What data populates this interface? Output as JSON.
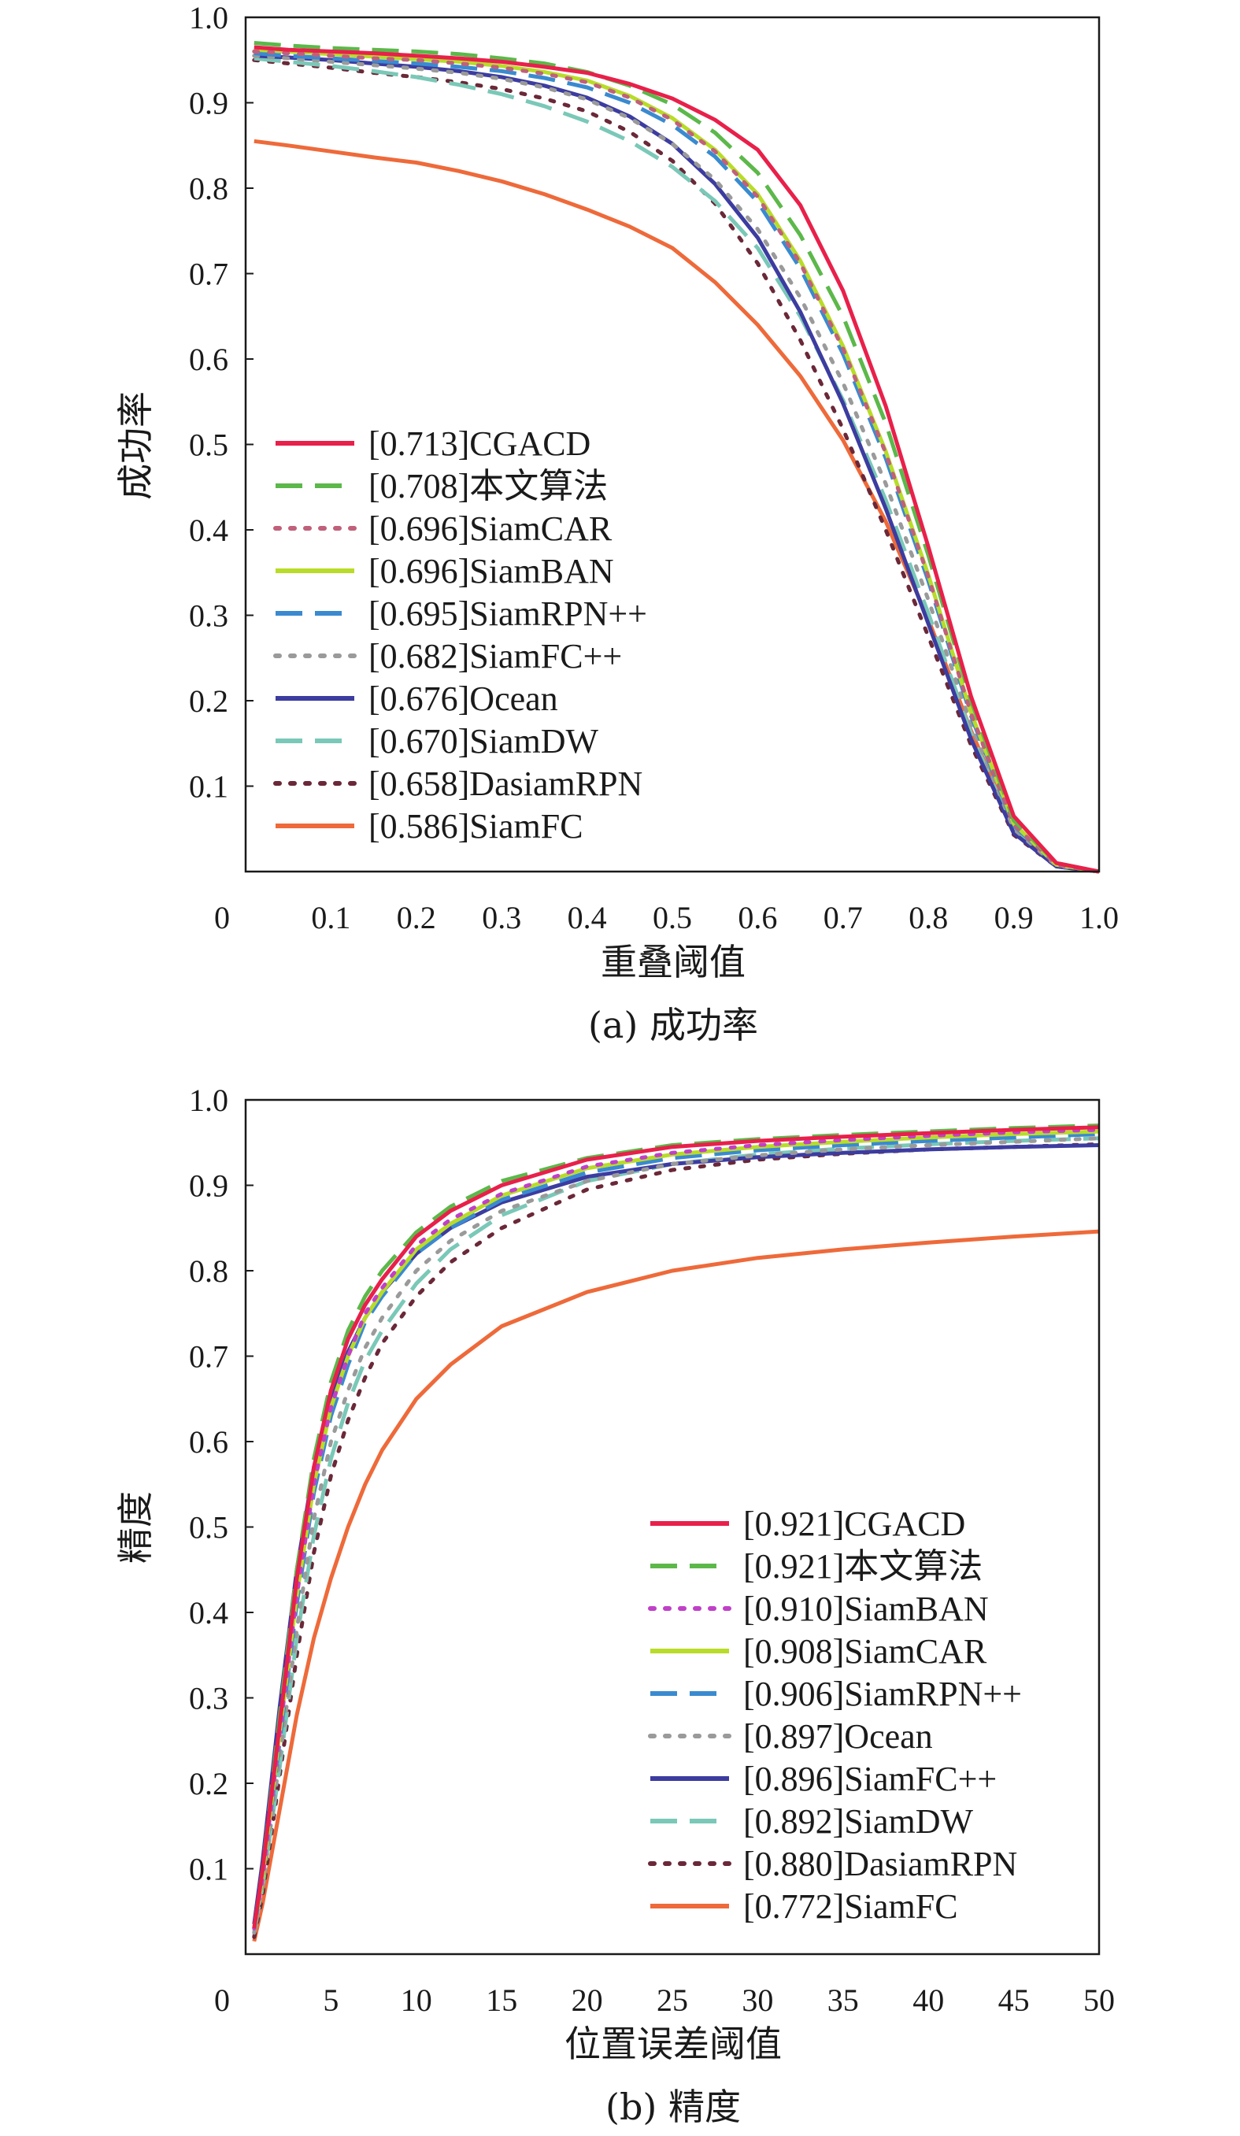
{
  "chart_data": [
    {
      "type": "line",
      "title": "",
      "caption": "(a) 成功率",
      "xlabel": "重叠阈值",
      "ylabel": "成功率",
      "xlim": [
        0,
        1.0
      ],
      "ylim": [
        0,
        1.0
      ],
      "x_ticks": [
        "0",
        "0.1",
        "0.2",
        "0.3",
        "0.4",
        "0.5",
        "0.6",
        "0.7",
        "0.8",
        "0.9",
        "1.0"
      ],
      "x_tick_values": [
        0,
        0.1,
        0.2,
        0.3,
        0.4,
        0.5,
        0.6,
        0.7,
        0.8,
        0.9,
        1.0
      ],
      "y_ticks": [
        "0.1",
        "0.2",
        "0.3",
        "0.4",
        "0.5",
        "0.6",
        "0.7",
        "0.8",
        "0.9",
        "1.0"
      ],
      "y_tick_values": [
        0.1,
        0.2,
        0.3,
        0.4,
        0.5,
        0.6,
        0.7,
        0.8,
        0.9,
        1.0
      ],
      "legend_position": "lower-left",
      "x": [
        0.01,
        0.05,
        0.1,
        0.15,
        0.2,
        0.25,
        0.3,
        0.35,
        0.4,
        0.45,
        0.5,
        0.55,
        0.6,
        0.65,
        0.7,
        0.75,
        0.8,
        0.85,
        0.9,
        0.95,
        1.0
      ],
      "series": [
        {
          "name": "CGACD",
          "label": "[0.713]CGACD",
          "color": "#e8204a",
          "style": "solid",
          "values": [
            0.965,
            0.962,
            0.96,
            0.958,
            0.955,
            0.952,
            0.948,
            0.942,
            0.935,
            0.922,
            0.905,
            0.88,
            0.845,
            0.78,
            0.68,
            0.545,
            0.38,
            0.205,
            0.065,
            0.01,
            0.0
          ]
        },
        {
          "name": "本文算法",
          "label": "[0.708]本文算法",
          "color": "#5cb84a",
          "style": "dashed",
          "values": [
            0.97,
            0.967,
            0.964,
            0.962,
            0.96,
            0.957,
            0.952,
            0.946,
            0.936,
            0.92,
            0.898,
            0.865,
            0.818,
            0.745,
            0.65,
            0.525,
            0.37,
            0.2,
            0.06,
            0.01,
            0.0
          ]
        },
        {
          "name": "SiamCAR",
          "label": "[0.696]SiamCAR",
          "color": "#c0607a",
          "style": "dotted",
          "values": [
            0.96,
            0.958,
            0.955,
            0.952,
            0.95,
            0.946,
            0.941,
            0.934,
            0.924,
            0.906,
            0.88,
            0.843,
            0.79,
            0.712,
            0.612,
            0.49,
            0.345,
            0.185,
            0.055,
            0.008,
            0.0
          ]
        },
        {
          "name": "SiamBAN",
          "label": "[0.696]SiamBAN",
          "color": "#b8dc28",
          "style": "solid",
          "values": [
            0.962,
            0.96,
            0.957,
            0.954,
            0.951,
            0.948,
            0.943,
            0.936,
            0.926,
            0.908,
            0.882,
            0.845,
            0.793,
            0.715,
            0.615,
            0.492,
            0.347,
            0.186,
            0.056,
            0.008,
            0.0
          ]
        },
        {
          "name": "SiamRPN++",
          "label": "[0.695]SiamRPN++",
          "color": "#3a8ad0",
          "style": "dashed",
          "values": [
            0.958,
            0.955,
            0.952,
            0.949,
            0.946,
            0.942,
            0.937,
            0.929,
            0.918,
            0.9,
            0.874,
            0.837,
            0.784,
            0.706,
            0.606,
            0.484,
            0.34,
            0.182,
            0.054,
            0.008,
            0.0
          ]
        },
        {
          "name": "SiamFC++",
          "label": "[0.682]SiamFC++",
          "color": "#9a9a9a",
          "style": "dotted",
          "values": [
            0.955,
            0.952,
            0.948,
            0.944,
            0.94,
            0.935,
            0.928,
            0.918,
            0.904,
            0.882,
            0.852,
            0.81,
            0.752,
            0.672,
            0.572,
            0.454,
            0.318,
            0.172,
            0.05,
            0.007,
            0.0
          ]
        },
        {
          "name": "Ocean",
          "label": "[0.676]Ocean",
          "color": "#3c3ca0",
          "style": "solid",
          "values": [
            0.955,
            0.953,
            0.95,
            0.946,
            0.942,
            0.937,
            0.93,
            0.92,
            0.906,
            0.884,
            0.852,
            0.805,
            0.742,
            0.655,
            0.548,
            0.425,
            0.29,
            0.155,
            0.045,
            0.006,
            0.0
          ]
        },
        {
          "name": "SiamDW",
          "label": "[0.670]SiamDW",
          "color": "#7ac8b8",
          "style": "dashed",
          "values": [
            0.952,
            0.948,
            0.943,
            0.937,
            0.93,
            0.921,
            0.91,
            0.896,
            0.878,
            0.855,
            0.825,
            0.785,
            0.73,
            0.65,
            0.552,
            0.435,
            0.302,
            0.162,
            0.047,
            0.006,
            0.0
          ]
        },
        {
          "name": "DasiamRPN",
          "label": "[0.658]DasiamRPN",
          "color": "#6a2838",
          "style": "dotted",
          "values": [
            0.95,
            0.946,
            0.941,
            0.935,
            0.93,
            0.924,
            0.916,
            0.905,
            0.89,
            0.866,
            0.832,
            0.782,
            0.712,
            0.622,
            0.518,
            0.4,
            0.275,
            0.148,
            0.043,
            0.006,
            0.0
          ]
        },
        {
          "name": "SiamFC",
          "label": "[0.586]SiamFC",
          "color": "#ee6a3a",
          "style": "solid",
          "values": [
            0.855,
            0.85,
            0.843,
            0.836,
            0.83,
            0.82,
            0.808,
            0.793,
            0.775,
            0.755,
            0.73,
            0.69,
            0.64,
            0.58,
            0.505,
            0.41,
            0.295,
            0.165,
            0.05,
            0.007,
            0.0
          ]
        }
      ]
    },
    {
      "type": "line",
      "title": "",
      "caption": "(b) 精度",
      "xlabel": "位置误差阈值",
      "ylabel": "精度",
      "xlim": [
        0,
        50
      ],
      "ylim": [
        0,
        1.0
      ],
      "x_ticks": [
        "0",
        "5",
        "10",
        "15",
        "20",
        "25",
        "30",
        "35",
        "40",
        "45",
        "50"
      ],
      "x_tick_values": [
        0,
        5,
        10,
        15,
        20,
        25,
        30,
        35,
        40,
        45,
        50
      ],
      "y_ticks": [
        "0.1",
        "0.2",
        "0.3",
        "0.4",
        "0.5",
        "0.6",
        "0.7",
        "0.8",
        "0.9",
        "1.0"
      ],
      "y_tick_values": [
        0.1,
        0.2,
        0.3,
        0.4,
        0.5,
        0.6,
        0.7,
        0.8,
        0.9,
        1.0
      ],
      "legend_position": "lower-right",
      "x": [
        0.5,
        1,
        2,
        3,
        4,
        5,
        6,
        7,
        8,
        10,
        12,
        15,
        20,
        25,
        30,
        35,
        40,
        45,
        50
      ],
      "series": [
        {
          "name": "CGACD",
          "label": "[0.921]CGACD",
          "color": "#e8204a",
          "style": "solid",
          "values": [
            0.03,
            0.1,
            0.27,
            0.44,
            0.57,
            0.66,
            0.72,
            0.76,
            0.79,
            0.84,
            0.87,
            0.9,
            0.93,
            0.945,
            0.952,
            0.957,
            0.961,
            0.965,
            0.968
          ]
        },
        {
          "name": "本文算法",
          "label": "[0.921]本文算法",
          "color": "#5cb84a",
          "style": "dashed",
          "values": [
            0.03,
            0.1,
            0.28,
            0.45,
            0.58,
            0.67,
            0.73,
            0.77,
            0.8,
            0.845,
            0.875,
            0.905,
            0.932,
            0.947,
            0.954,
            0.959,
            0.963,
            0.967,
            0.97
          ]
        },
        {
          "name": "SiamBAN",
          "label": "[0.910]SiamBAN",
          "color": "#c040c8",
          "style": "dotted",
          "values": [
            0.03,
            0.09,
            0.26,
            0.42,
            0.55,
            0.64,
            0.7,
            0.75,
            0.78,
            0.83,
            0.86,
            0.89,
            0.922,
            0.938,
            0.947,
            0.953,
            0.958,
            0.962,
            0.965
          ]
        },
        {
          "name": "SiamCAR",
          "label": "[0.908]SiamCAR",
          "color": "#b8dc28",
          "style": "solid",
          "values": [
            0.03,
            0.09,
            0.26,
            0.42,
            0.55,
            0.64,
            0.7,
            0.745,
            0.775,
            0.825,
            0.855,
            0.888,
            0.92,
            0.936,
            0.945,
            0.951,
            0.956,
            0.96,
            0.963
          ]
        },
        {
          "name": "SiamRPN++",
          "label": "[0.906]SiamRPN++",
          "color": "#3a8ad0",
          "style": "dashed",
          "values": [
            0.03,
            0.09,
            0.25,
            0.41,
            0.54,
            0.63,
            0.69,
            0.74,
            0.77,
            0.82,
            0.85,
            0.883,
            0.915,
            0.932,
            0.941,
            0.947,
            0.952,
            0.956,
            0.96
          ]
        },
        {
          "name": "Ocean",
          "label": "[0.897]Ocean",
          "color": "#9a9a9a",
          "style": "dotted",
          "values": [
            0.025,
            0.08,
            0.23,
            0.38,
            0.51,
            0.6,
            0.66,
            0.71,
            0.745,
            0.8,
            0.835,
            0.87,
            0.905,
            0.925,
            0.935,
            0.942,
            0.947,
            0.951,
            0.955
          ]
        },
        {
          "name": "SiamFC++",
          "label": "[0.896]SiamFC++",
          "color": "#3c3ca0",
          "style": "solid",
          "values": [
            0.035,
            0.11,
            0.29,
            0.45,
            0.57,
            0.65,
            0.705,
            0.745,
            0.775,
            0.82,
            0.85,
            0.88,
            0.91,
            0.925,
            0.933,
            0.938,
            0.942,
            0.945,
            0.947
          ]
        },
        {
          "name": "SiamDW",
          "label": "[0.892]SiamDW",
          "color": "#7ac8b8",
          "style": "dashed",
          "values": [
            0.025,
            0.08,
            0.22,
            0.37,
            0.49,
            0.58,
            0.645,
            0.695,
            0.73,
            0.785,
            0.825,
            0.865,
            0.905,
            0.925,
            0.936,
            0.943,
            0.948,
            0.952,
            0.955
          ]
        },
        {
          "name": "DasiamRPN",
          "label": "[0.880]DasiamRPN",
          "color": "#6a2838",
          "style": "dotted",
          "values": [
            0.02,
            0.07,
            0.21,
            0.35,
            0.47,
            0.56,
            0.625,
            0.675,
            0.715,
            0.77,
            0.81,
            0.85,
            0.895,
            0.918,
            0.93,
            0.937,
            0.942,
            0.945,
            0.948
          ]
        },
        {
          "name": "SiamFC",
          "label": "[0.772]SiamFC",
          "color": "#ee6a3a",
          "style": "solid",
          "values": [
            0.015,
            0.06,
            0.17,
            0.28,
            0.37,
            0.44,
            0.5,
            0.55,
            0.59,
            0.65,
            0.69,
            0.735,
            0.775,
            0.8,
            0.815,
            0.825,
            0.833,
            0.84,
            0.846
          ]
        }
      ]
    }
  ]
}
